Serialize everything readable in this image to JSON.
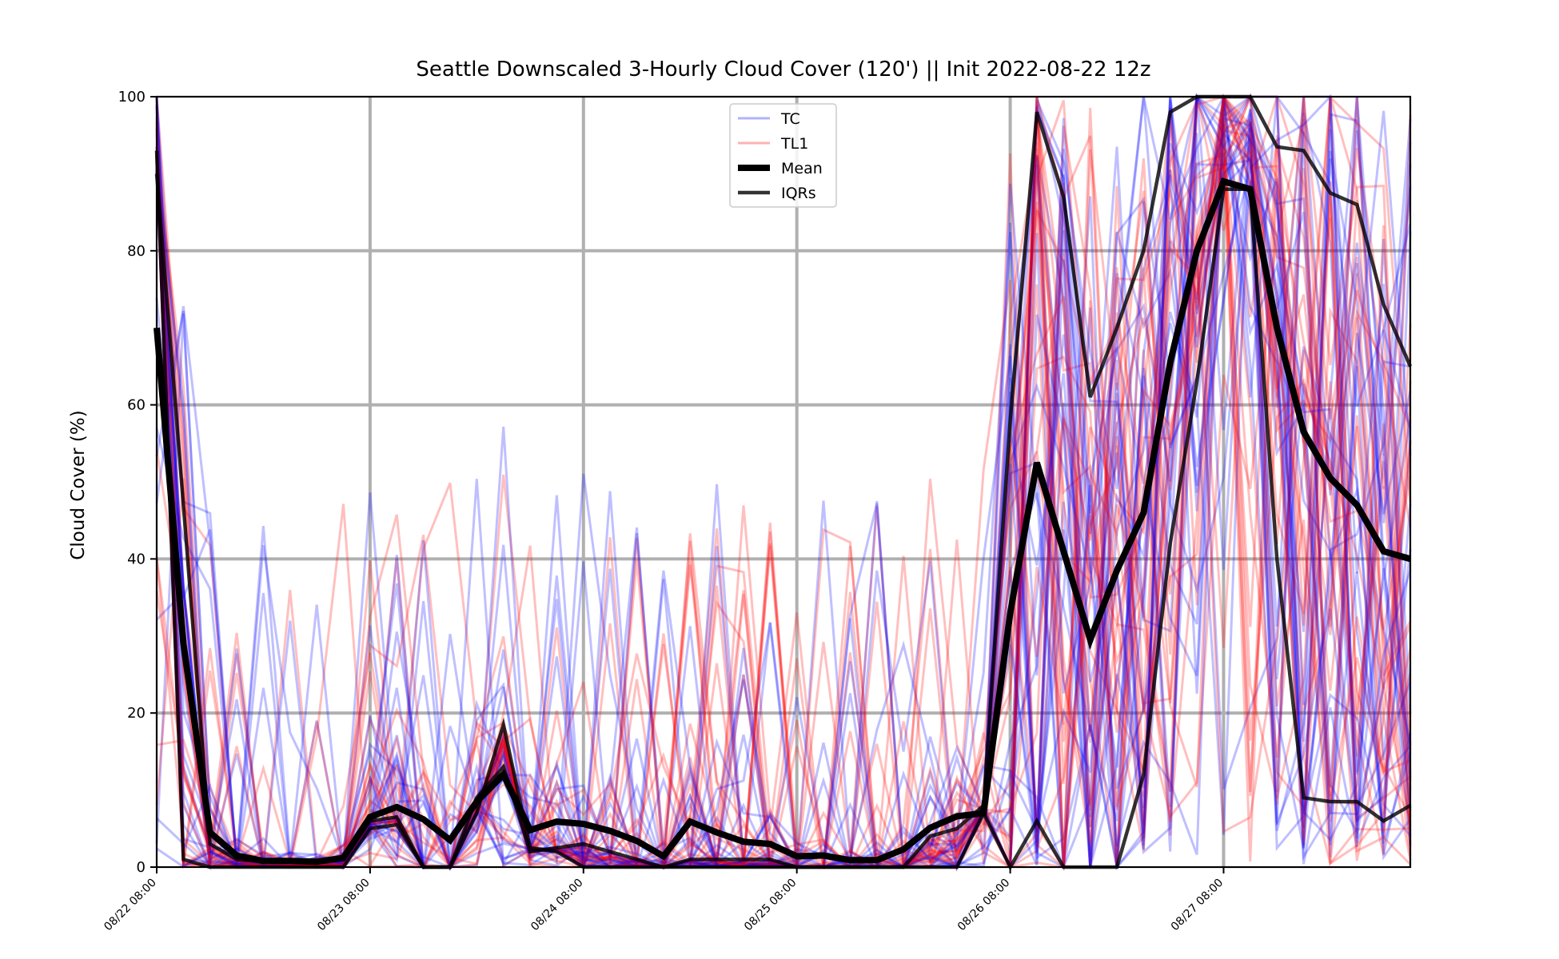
{
  "chart_data": {
    "type": "line",
    "title": "Seattle Downscaled 3-Hourly Cloud Cover (120') || Init 2022-08-22 12z",
    "xlabel": "",
    "ylabel": "Cloud Cover (%)",
    "ylim": [
      0,
      100
    ],
    "yticks": [
      0,
      20,
      40,
      60,
      80,
      100
    ],
    "x_tick_labels": [
      "08/22 08:00",
      "08/23 08:00",
      "08/24 08:00",
      "08/25 08:00",
      "08/26 08:00",
      "08/27 08:00"
    ],
    "x_tick_steps": [
      0,
      8,
      16,
      24,
      32,
      40
    ],
    "step_hours": 3,
    "num_steps": 48,
    "grid": true,
    "legend": {
      "placement": "top-center",
      "entries": [
        {
          "label": "TC",
          "color": "#0000ff"
        },
        {
          "label": "TL1",
          "color": "#ff0000"
        },
        {
          "label": "Mean",
          "color": "#000000"
        },
        {
          "label": "IQRs",
          "color": "#000000"
        }
      ]
    },
    "series": [
      {
        "name": "Mean",
        "color": "#000000",
        "values": [
          70,
          29,
          4.5,
          1.5,
          0.8,
          0.8,
          0.7,
          1.2,
          6.5,
          7.8,
          6.2,
          3.5,
          8.5,
          12,
          4.8,
          5.9,
          5.6,
          4.7,
          3.4,
          1.4,
          5.9,
          4.5,
          3.3,
          3,
          1.4,
          1.5,
          0.9,
          0.9,
          2.3,
          5.1,
          6.6,
          7,
          33,
          52.5,
          41,
          29.5,
          38.5,
          46,
          65.5,
          80,
          89,
          88,
          70,
          56.5,
          50.5,
          47,
          41,
          40
        ]
      },
      {
        "name": "IQRs",
        "color": "#000000",
        "values": [
          93,
          1,
          0,
          0,
          0,
          0,
          0,
          0,
          5,
          5.5,
          0,
          0,
          7,
          18.5,
          2.5,
          2,
          0,
          0,
          0,
          0,
          0,
          0,
          0,
          0,
          0,
          0,
          0,
          0,
          0,
          0,
          0,
          7,
          0,
          6,
          0,
          0,
          0,
          12,
          42,
          63,
          88,
          88,
          40,
          9,
          8.5,
          8.5,
          6,
          8
        ]
      },
      {
        "name": "IQRs",
        "color": "#000000",
        "values": [
          90,
          47,
          3,
          1,
          0.7,
          0.7,
          0.7,
          1,
          6,
          6.5,
          0,
          0,
          9,
          13,
          2,
          2.5,
          3,
          2,
          1,
          0,
          1,
          1,
          1,
          1,
          0,
          0,
          0,
          0,
          0,
          4,
          5,
          8,
          58,
          98,
          87,
          61,
          70,
          80,
          98,
          100,
          100,
          100,
          93.5,
          93,
          87.5,
          86,
          73,
          65
        ]
      }
    ]
  }
}
